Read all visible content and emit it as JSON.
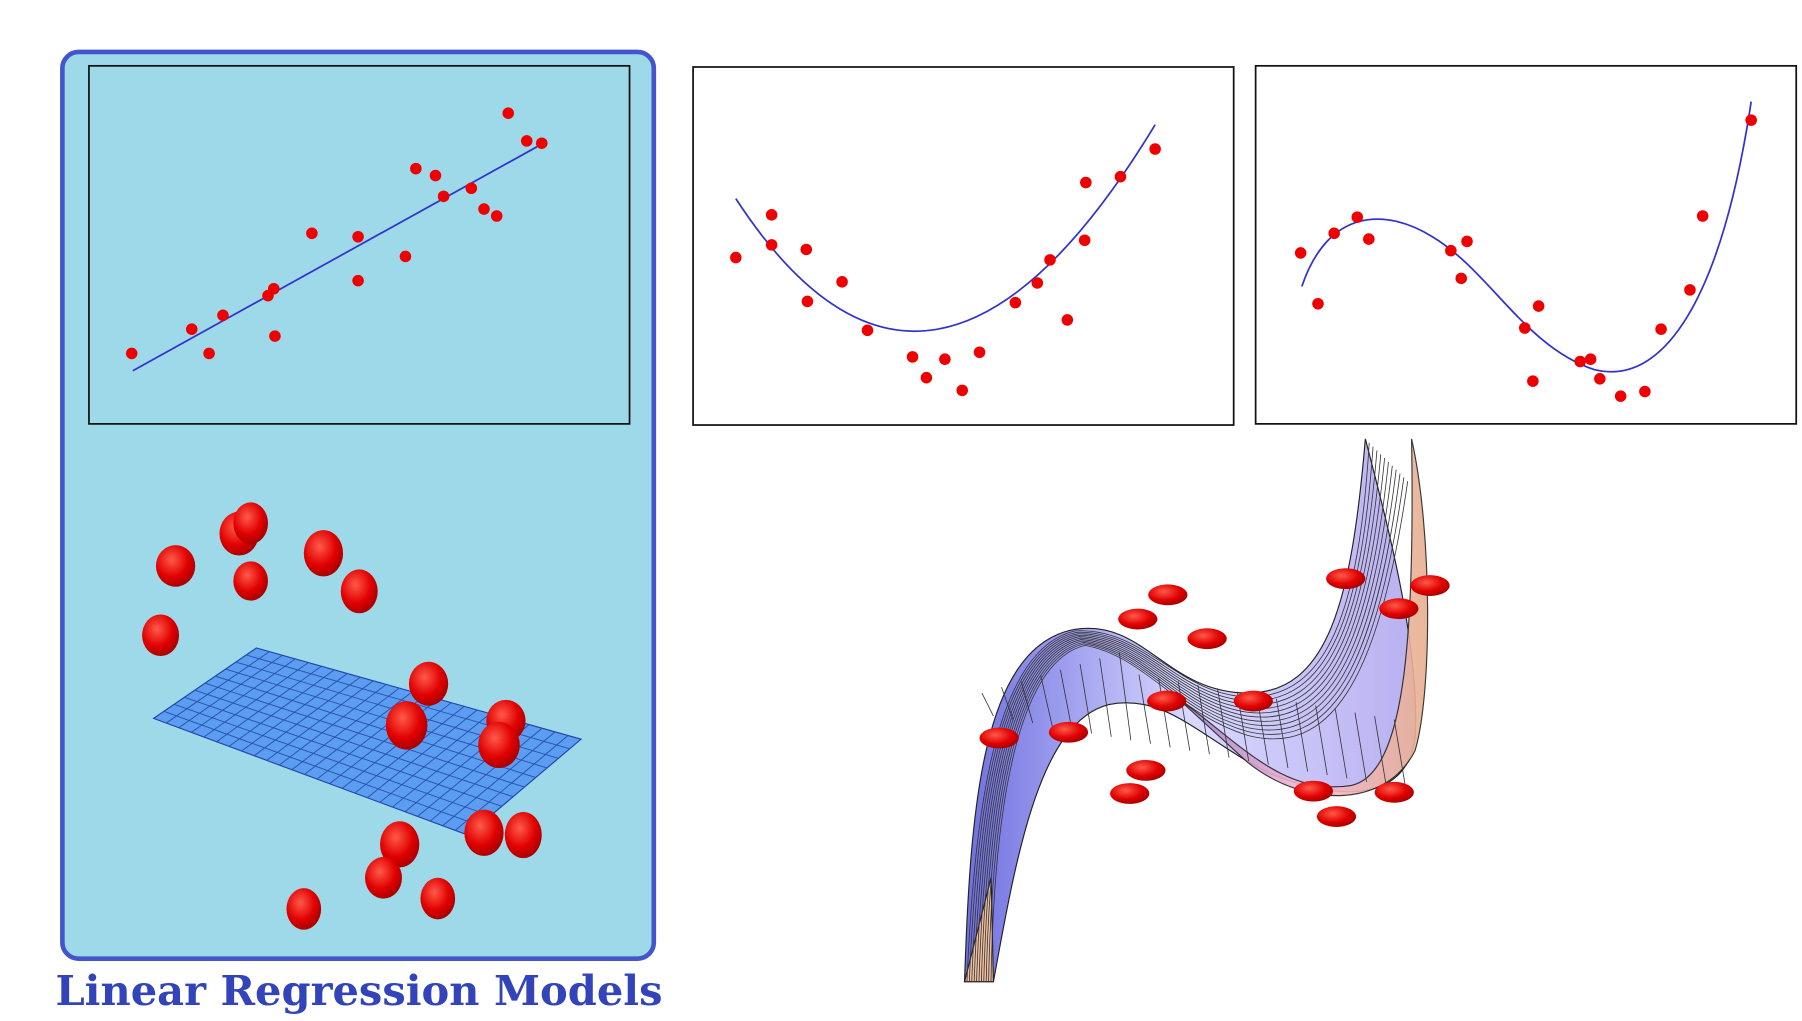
{
  "caption": "Linear Regression Models"
}
